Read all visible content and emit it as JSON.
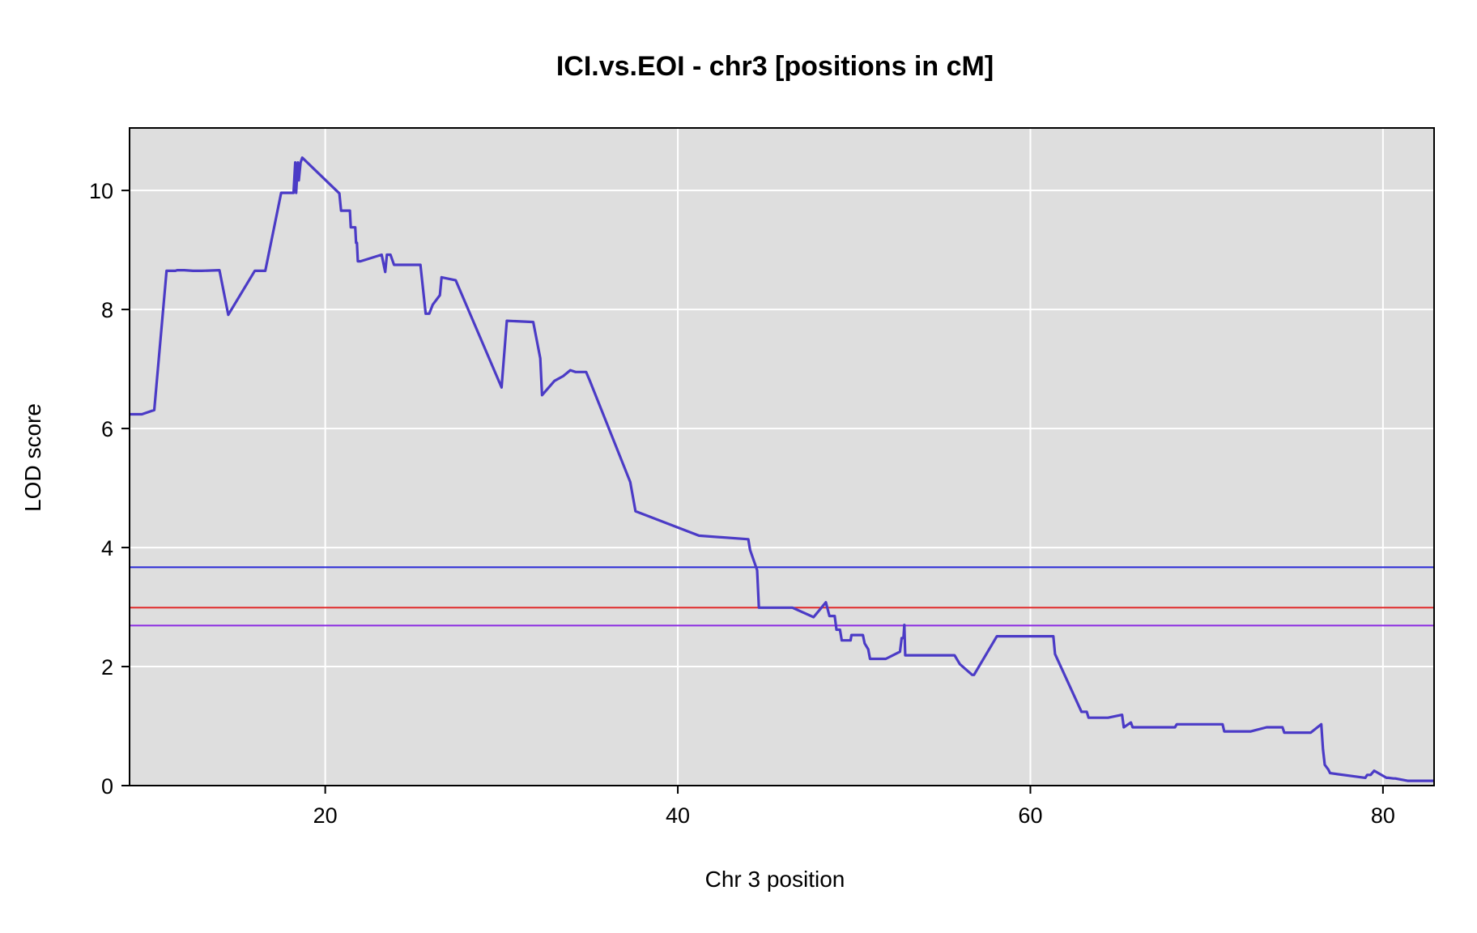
{
  "chart_data": {
    "type": "line",
    "title": "ICI.vs.EOI - chr3 [positions in cM]",
    "xlabel": "Chr 3 position",
    "ylabel": "LOD score",
    "xlim": [
      8.9,
      82.9
    ],
    "ylim": [
      0,
      11.05
    ],
    "xticks": [
      20,
      40,
      60,
      80
    ],
    "yticks": [
      0,
      2,
      4,
      6,
      8,
      10
    ],
    "grid": true,
    "background": "#dedede",
    "series": [
      {
        "color": "#4b3bc6",
        "x": [
          8.9,
          9.6,
          10.3,
          11.0,
          11.5,
          11.6,
          12.0,
          12.5,
          13.0,
          14.0,
          14.5,
          16.0,
          16.6,
          17.5,
          18.2,
          18.3,
          18.35,
          18.45,
          18.5,
          18.6,
          18.7,
          20.8,
          20.9,
          21.4,
          21.45,
          21.7,
          21.75,
          21.8,
          21.85,
          22.0,
          23.2,
          23.4,
          23.5,
          23.7,
          23.9,
          24.8,
          25.4,
          25.7,
          25.9,
          26.1,
          26.5,
          26.6,
          27.4,
          30.0,
          30.3,
          31.8,
          32.2,
          32.3,
          33.0,
          33.5,
          33.9,
          34.2,
          34.8,
          35.0,
          37.3,
          37.6,
          41.2,
          44.0,
          44.1,
          44.5,
          44.6,
          46.5,
          47.7,
          48.4,
          48.6,
          48.65,
          48.9,
          49.0,
          49.2,
          49.3,
          49.8,
          49.85,
          50.5,
          50.6,
          50.8,
          50.9,
          51.8,
          52.6,
          52.7,
          52.8,
          52.85,
          52.9,
          55.7,
          56.0,
          56.7,
          56.8,
          58.1,
          61.3,
          61.4,
          62.9,
          63.2,
          63.3,
          64.4,
          65.2,
          65.3,
          65.7,
          65.8,
          68.2,
          68.3,
          70.9,
          71.0,
          72.5,
          73.4,
          74.3,
          74.4,
          75.9,
          76.5,
          76.6,
          76.7,
          76.9,
          77.0,
          79.0,
          79.1,
          79.3,
          79.5,
          80.2,
          80.3,
          80.6,
          80.7,
          81.4,
          81.5,
          82.9
        ],
        "y": [
          6.24,
          6.24,
          6.31,
          8.65,
          8.65,
          8.66,
          8.66,
          8.65,
          8.65,
          8.66,
          7.91,
          8.65,
          8.65,
          9.96,
          9.96,
          10.47,
          9.96,
          10.47,
          10.17,
          10.47,
          10.55,
          9.95,
          9.66,
          9.66,
          9.38,
          9.38,
          9.12,
          9.12,
          8.81,
          8.81,
          8.92,
          8.63,
          8.92,
          8.92,
          8.75,
          8.75,
          8.75,
          7.93,
          7.93,
          8.08,
          8.24,
          8.54,
          8.49,
          6.69,
          7.81,
          7.79,
          7.18,
          6.56,
          6.8,
          6.88,
          6.98,
          6.95,
          6.95,
          6.81,
          5.1,
          4.61,
          4.2,
          4.14,
          3.96,
          3.62,
          2.99,
          2.99,
          2.83,
          3.08,
          2.85,
          2.85,
          2.85,
          2.62,
          2.62,
          2.44,
          2.44,
          2.53,
          2.53,
          2.39,
          2.29,
          2.13,
          2.13,
          2.25,
          2.48,
          2.48,
          2.7,
          2.19,
          2.19,
          2.04,
          1.86,
          1.86,
          2.51,
          2.51,
          2.21,
          1.24,
          1.24,
          1.14,
          1.14,
          1.19,
          0.98,
          1.06,
          0.98,
          0.98,
          1.03,
          1.03,
          0.91,
          0.91,
          0.98,
          0.98,
          0.89,
          0.89,
          1.03,
          0.61,
          0.35,
          0.27,
          0.21,
          0.13,
          0.18,
          0.18,
          0.25,
          0.13,
          0.13,
          0.12,
          0.12,
          0.08,
          0.08,
          0.08
        ]
      }
    ],
    "thresholds": [
      {
        "y": 3.67,
        "color": "#2a2ad6"
      },
      {
        "y": 2.99,
        "color": "#e02a2a"
      },
      {
        "y": 2.69,
        "color": "#8a2be2"
      }
    ]
  }
}
